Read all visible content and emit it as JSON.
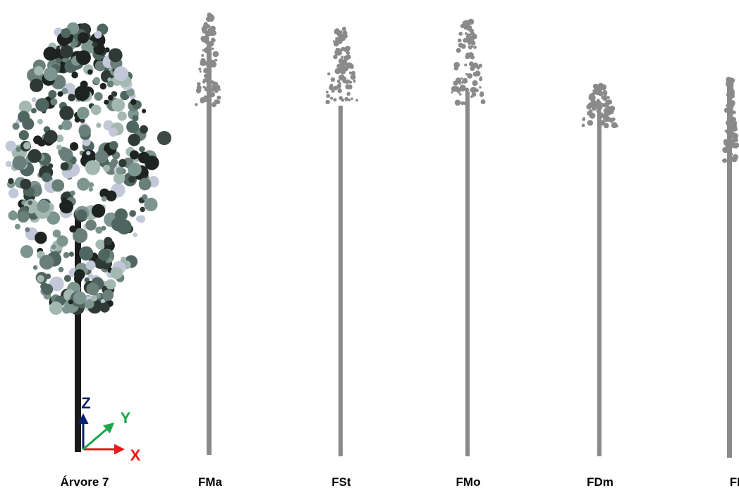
{
  "panels": [
    {
      "label": "Árvore 7"
    },
    {
      "label": "FMa"
    },
    {
      "label": "FSt"
    },
    {
      "label": "FMo"
    },
    {
      "label": "FDm"
    },
    {
      "label": "FPl"
    }
  ],
  "axes": {
    "x": "X",
    "y": "Y",
    "z": "Z"
  }
}
